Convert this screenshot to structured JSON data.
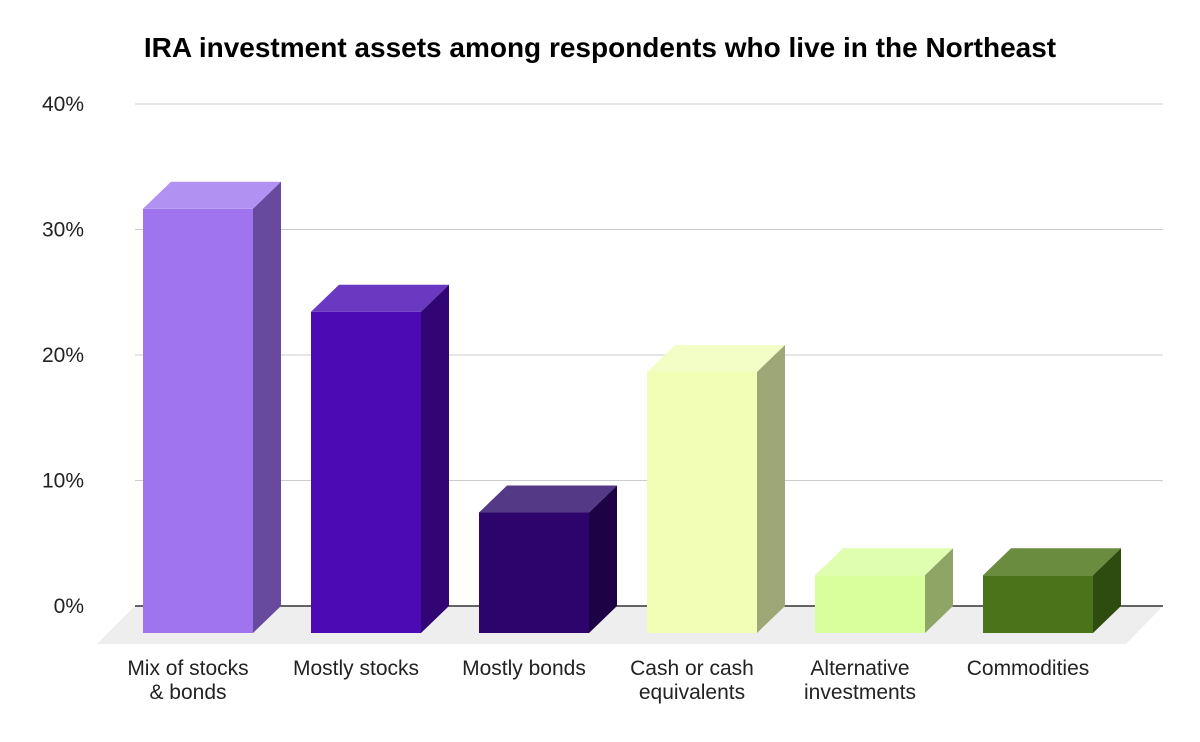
{
  "chart_data": {
    "type": "bar",
    "title": "IRA investment assets among respondents who live in the Northeast",
    "xlabel": "",
    "ylabel": "",
    "ylim": [
      0,
      40
    ],
    "y_ticks": [
      0,
      10,
      20,
      30,
      40
    ],
    "y_tick_labels": [
      "0%",
      "10%",
      "20%",
      "30%",
      "40%"
    ],
    "grid": true,
    "legend": "none",
    "style": "3d",
    "categories": [
      [
        "Mix of stocks",
        "& bonds"
      ],
      [
        "Mostly stocks"
      ],
      [
        "Mostly bonds"
      ],
      [
        "Cash or cash",
        "equivalents"
      ],
      [
        "Alternative",
        "investments"
      ],
      [
        "Commodities"
      ]
    ],
    "values": [
      33.8,
      25.6,
      9.6,
      20.8,
      4.6,
      4.6
    ],
    "colors": [
      {
        "front": "#a074ee",
        "top": "#b191f2",
        "side": "#674a9e"
      },
      {
        "front": "#4c0ab4",
        "top": "#6b38c2",
        "side": "#310574"
      },
      {
        "front": "#2d046c",
        "top": "#543a86",
        "side": "#1d0246"
      },
      {
        "front": "#f2feb6",
        "top": "#f3fec6",
        "side": "#9da876"
      },
      {
        "front": "#d9fe9c",
        "top": "#e0feb0",
        "side": "#8ea566"
      },
      {
        "front": "#497419",
        "top": "#6a8c3f",
        "side": "#2f4c10"
      }
    ],
    "floor_color": "#eeeeee",
    "grid_color": "#cccccc",
    "axis_color": "#333333"
  }
}
